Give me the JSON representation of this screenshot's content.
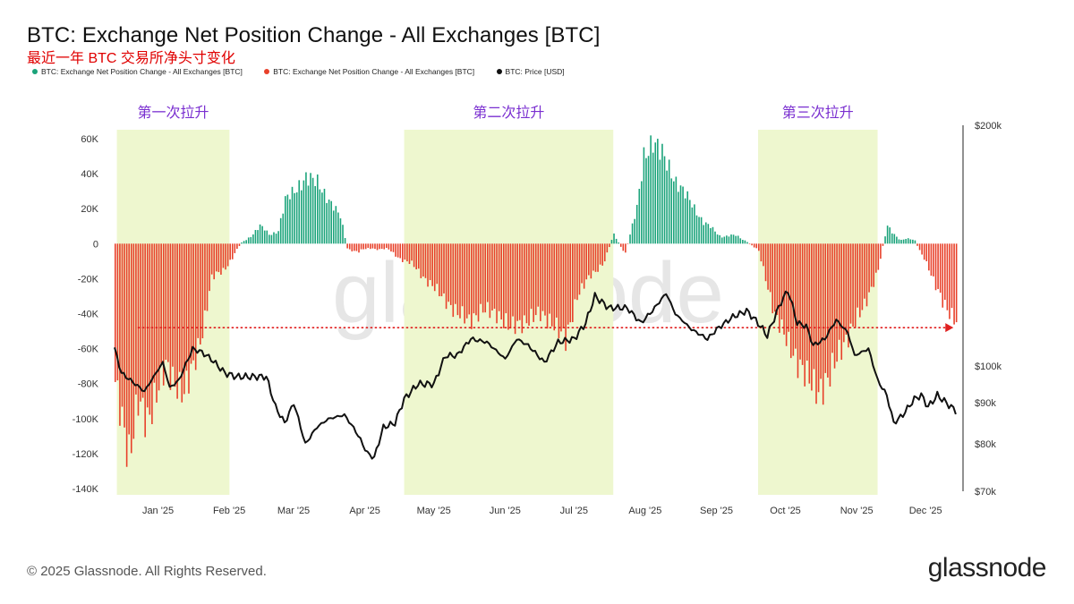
{
  "title": "BTC: Exchange Net Position Change - All Exchanges [BTC]",
  "subtitle": "最近一年 BTC 交易所净头寸变化",
  "legend": [
    {
      "label": "BTC: Exchange Net Position Change - All Exchanges [BTC]",
      "color": "#1aa37a"
    },
    {
      "label": "BTC: Exchange Net Position Change - All Exchanges [BTC]",
      "color": "#e8402a"
    },
    {
      "label": "BTC: Price [USD]",
      "color": "#111111"
    }
  ],
  "footer": "© 2025 Glassnode. All Rights Reserved.",
  "logo": "glassnode",
  "watermark": "glassnode",
  "colors": {
    "positive": "#1aa37a",
    "negative": "#e8402a",
    "price": "#111111",
    "highlight": "#eef7cf",
    "arrow": "#e02020",
    "phase_label": "#7a2fd0"
  },
  "chart_data": {
    "type": "bar",
    "x_tick_labels": [
      "Jan '25",
      "Feb '25",
      "Mar '25",
      "Apr '25",
      "May '25",
      "Jun '25",
      "Jul '25",
      "Aug '25",
      "Sep '25",
      "Oct '25",
      "Nov '25",
      "Dec '25"
    ],
    "x_range": [
      "2024-12-17",
      "2025-12-20"
    ],
    "y_left": {
      "ticks": [
        "60K",
        "40K",
        "20K",
        "0",
        "-20K",
        "-40K",
        "-60K",
        "-80K",
        "-100K",
        "-120K",
        "-140K"
      ],
      "range": [
        -140000,
        60000
      ]
    },
    "y_right": {
      "ticks": [
        "$200k",
        "$100k",
        "$90k",
        "$80k",
        "$70k"
      ],
      "scale": "log",
      "range": [
        70000,
        200000
      ]
    },
    "phases": [
      {
        "label": "第一次拉升",
        "start": "2024-12-18",
        "end": "2025-02-05"
      },
      {
        "label": "第二次拉升",
        "start": "2025-04-22",
        "end": "2025-07-22"
      },
      {
        "label": "第三次拉升",
        "start": "2025-09-23",
        "end": "2025-11-14"
      }
    ],
    "threshold_arrow": {
      "value": -48000,
      "start": "2024-12-27",
      "end": "2025-12-17"
    },
    "net_position_keypoints": [
      [
        "2024-12-17",
        -80000
      ],
      [
        "2024-12-20",
        -100000
      ],
      [
        "2024-12-23",
        -122000
      ],
      [
        "2024-12-27",
        -90000
      ],
      [
        "2024-12-31",
        -102000
      ],
      [
        "2025-01-04",
        -85000
      ],
      [
        "2025-01-08",
        -70000
      ],
      [
        "2025-01-12",
        -80000
      ],
      [
        "2025-01-16",
        -85000
      ],
      [
        "2025-01-20",
        -70000
      ],
      [
        "2025-01-24",
        -50000
      ],
      [
        "2025-01-28",
        -20000
      ],
      [
        "2025-02-02",
        -15000
      ],
      [
        "2025-02-06",
        -8000
      ],
      [
        "2025-02-10",
        0
      ],
      [
        "2025-02-14",
        5000
      ],
      [
        "2025-02-18",
        10000
      ],
      [
        "2025-02-22",
        5000
      ],
      [
        "2025-02-26",
        8000
      ],
      [
        "2025-03-01",
        25000
      ],
      [
        "2025-03-05",
        30000
      ],
      [
        "2025-03-10",
        38000
      ],
      [
        "2025-03-15",
        35000
      ],
      [
        "2025-03-20",
        25000
      ],
      [
        "2025-03-25",
        15000
      ],
      [
        "2025-03-28",
        -2000
      ],
      [
        "2025-04-02",
        -5000
      ],
      [
        "2025-04-08",
        -2000
      ],
      [
        "2025-04-15",
        -4000
      ],
      [
        "2025-04-20",
        -8000
      ],
      [
        "2025-04-25",
        -12000
      ],
      [
        "2025-05-01",
        -20000
      ],
      [
        "2025-05-08",
        -30000
      ],
      [
        "2025-05-15",
        -40000
      ],
      [
        "2025-05-20",
        -44000
      ],
      [
        "2025-05-26",
        -38000
      ],
      [
        "2025-06-01",
        -40000
      ],
      [
        "2025-06-07",
        -48000
      ],
      [
        "2025-06-14",
        -44000
      ],
      [
        "2025-06-20",
        -40000
      ],
      [
        "2025-06-25",
        -45000
      ],
      [
        "2025-07-01",
        -55000
      ],
      [
        "2025-07-06",
        -30000
      ],
      [
        "2025-07-12",
        -18000
      ],
      [
        "2025-07-18",
        -10000
      ],
      [
        "2025-07-22",
        5000
      ],
      [
        "2025-07-27",
        -5000
      ],
      [
        "2025-08-01",
        20000
      ],
      [
        "2025-08-04",
        50000
      ],
      [
        "2025-08-08",
        58000
      ],
      [
        "2025-08-12",
        52000
      ],
      [
        "2025-08-18",
        35000
      ],
      [
        "2025-08-24",
        25000
      ],
      [
        "2025-08-30",
        12000
      ],
      [
        "2025-09-06",
        5000
      ],
      [
        "2025-09-13",
        4000
      ],
      [
        "2025-09-18",
        2000
      ],
      [
        "2025-09-23",
        -5000
      ],
      [
        "2025-09-26",
        -20000
      ],
      [
        "2025-09-30",
        -40000
      ],
      [
        "2025-10-05",
        -55000
      ],
      [
        "2025-10-10",
        -68000
      ],
      [
        "2025-10-15",
        -78000
      ],
      [
        "2025-10-19",
        -85000
      ],
      [
        "2025-10-23",
        -78000
      ],
      [
        "2025-10-28",
        -62000
      ],
      [
        "2025-11-02",
        -50000
      ],
      [
        "2025-11-08",
        -35000
      ],
      [
        "2025-11-14",
        -15000
      ],
      [
        "2025-11-18",
        10000
      ],
      [
        "2025-11-24",
        2000
      ],
      [
        "2025-11-30",
        2000
      ],
      [
        "2025-12-04",
        -8000
      ],
      [
        "2025-12-08",
        -22000
      ],
      [
        "2025-12-12",
        -32000
      ],
      [
        "2025-12-16",
        -42000
      ],
      [
        "2025-12-18",
        -45000
      ]
    ],
    "price_keypoints": [
      [
        "2024-12-17",
        105000
      ],
      [
        "2024-12-20",
        98000
      ],
      [
        "2024-12-26",
        95000
      ],
      [
        "2024-12-30",
        93000
      ],
      [
        "2025-01-03",
        97000
      ],
      [
        "2025-01-07",
        101000
      ],
      [
        "2025-01-10",
        94000
      ],
      [
        "2025-01-14",
        96000
      ],
      [
        "2025-01-20",
        105000
      ],
      [
        "2025-01-24",
        104000
      ],
      [
        "2025-01-28",
        102000
      ],
      [
        "2025-02-03",
        98000
      ],
      [
        "2025-02-08",
        97000
      ],
      [
        "2025-02-15",
        97000
      ],
      [
        "2025-02-21",
        97000
      ],
      [
        "2025-02-25",
        89000
      ],
      [
        "2025-03-01",
        85000
      ],
      [
        "2025-03-05",
        90000
      ],
      [
        "2025-03-10",
        80000
      ],
      [
        "2025-03-15",
        84000
      ],
      [
        "2025-03-20",
        86000
      ],
      [
        "2025-03-27",
        87000
      ],
      [
        "2025-04-01",
        83000
      ],
      [
        "2025-04-06",
        78000
      ],
      [
        "2025-04-09",
        77000
      ],
      [
        "2025-04-13",
        84000
      ],
      [
        "2025-04-18",
        85000
      ],
      [
        "2025-04-22",
        91000
      ],
      [
        "2025-04-28",
        95000
      ],
      [
        "2025-05-05",
        95000
      ],
      [
        "2025-05-10",
        103000
      ],
      [
        "2025-05-15",
        103000
      ],
      [
        "2025-05-21",
        108000
      ],
      [
        "2025-05-28",
        107000
      ],
      [
        "2025-06-05",
        102000
      ],
      [
        "2025-06-10",
        108000
      ],
      [
        "2025-06-15",
        106000
      ],
      [
        "2025-06-22",
        101000
      ],
      [
        "2025-06-28",
        107000
      ],
      [
        "2025-07-05",
        108000
      ],
      [
        "2025-07-10",
        113000
      ],
      [
        "2025-07-14",
        122000
      ],
      [
        "2025-07-20",
        118000
      ],
      [
        "2025-07-28",
        118000
      ],
      [
        "2025-08-03",
        113000
      ],
      [
        "2025-08-08",
        117000
      ],
      [
        "2025-08-14",
        123000
      ],
      [
        "2025-08-18",
        116000
      ],
      [
        "2025-08-25",
        111000
      ],
      [
        "2025-09-01",
        108000
      ],
      [
        "2025-09-05",
        111000
      ],
      [
        "2025-09-12",
        115000
      ],
      [
        "2025-09-18",
        117000
      ],
      [
        "2025-09-23",
        113000
      ],
      [
        "2025-09-27",
        109000
      ],
      [
        "2025-10-03",
        120000
      ],
      [
        "2025-10-06",
        124000
      ],
      [
        "2025-10-10",
        113000
      ],
      [
        "2025-10-14",
        112000
      ],
      [
        "2025-10-17",
        106000
      ],
      [
        "2025-10-22",
        108000
      ],
      [
        "2025-10-27",
        114000
      ],
      [
        "2025-11-01",
        110000
      ],
      [
        "2025-11-04",
        103000
      ],
      [
        "2025-11-10",
        105000
      ],
      [
        "2025-11-14",
        96000
      ],
      [
        "2025-11-18",
        92000
      ],
      [
        "2025-11-21",
        85000
      ],
      [
        "2025-11-25",
        87000
      ],
      [
        "2025-11-30",
        91000
      ],
      [
        "2025-12-03",
        92000
      ],
      [
        "2025-12-06",
        89000
      ],
      [
        "2025-12-10",
        92000
      ],
      [
        "2025-12-14",
        90000
      ],
      [
        "2025-12-18",
        88000
      ]
    ]
  }
}
